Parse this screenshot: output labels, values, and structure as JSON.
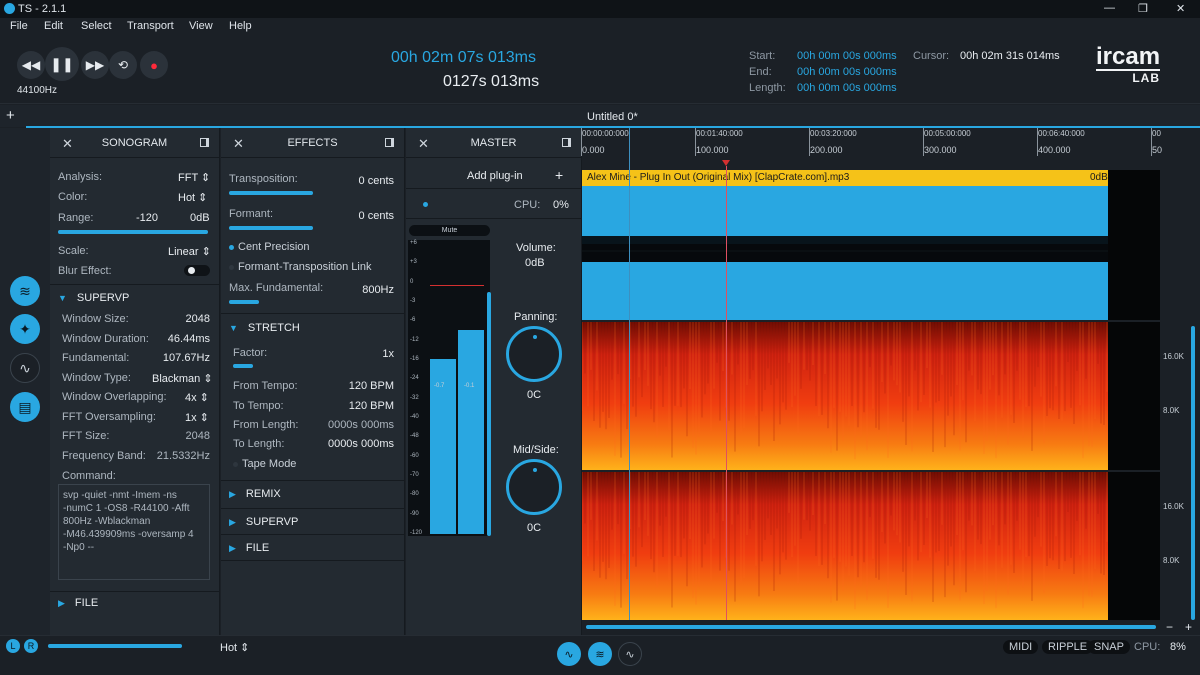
{
  "titlebar": {
    "title": "TS - 2.1.1"
  },
  "menu": [
    "File",
    "Edit",
    "Select",
    "Transport",
    "View",
    "Help"
  ],
  "transport": {
    "samplerate": "44100Hz",
    "time_hms": "00h  02m  07s  013ms",
    "time_s": "0127s  013ms",
    "start_label": "Start:",
    "start_value": "00h  00m  00s  000ms",
    "end_label": "End:",
    "end_value": "00h  00m  00s  000ms",
    "length_label": "Length:",
    "length_value": "00h  00m  00s  000ms",
    "cursor_label": "Cursor:",
    "cursor_value": "00h  02m  31s  014ms",
    "logo_top": "ircam",
    "logo_bottom": "LAB"
  },
  "tab": {
    "title": "Untitled 0*",
    "add": "+"
  },
  "sonogram": {
    "title": "SONOGRAM",
    "analysis_label": "Analysis:",
    "analysis_value": "FFT",
    "color_label": "Color:",
    "color_value": "Hot",
    "range_label": "Range:",
    "range_min": "-120",
    "range_max": "0dB",
    "scale_label": "Scale:",
    "scale_value": "Linear",
    "blur_label": "Blur Effect:",
    "supervp_title": "SUPERVP",
    "window_size_label": "Window Size:",
    "window_size_value": "2048",
    "window_duration_label": "Window Duration:",
    "window_duration_value": "46.44ms",
    "fundamental_label": "Fundamental:",
    "fundamental_value": "107.67Hz",
    "window_type_label": "Window Type:",
    "window_type_value": "Blackman",
    "overlap_label": "Window Overlapping:",
    "overlap_value": "4x",
    "fft_os_label": "FFT Oversampling:",
    "fft_os_value": "1x",
    "fft_size_label": "FFT Size:",
    "fft_size_value": "2048",
    "freq_band_label": "Frequency Band:",
    "freq_band_value": "21.5332Hz",
    "command_label": "Command:",
    "command_value": "svp -quiet -nmt -Imem -ns\n-numC 1 -OS8 -R44100 -Afft\n800Hz -Wblackman\n-M46.439909ms -oversamp 4\n-Np0 --",
    "file_title": "FILE"
  },
  "effects": {
    "title": "EFFECTS",
    "transposition_label": "Transposition:",
    "transposition_value": "0 cents",
    "formant_label": "Formant:",
    "formant_value": "0 cents",
    "cent_precision": "Cent Precision",
    "formant_link": "Formant-Transposition Link",
    "max_fund_label": "Max. Fundamental:",
    "max_fund_value": "800Hz",
    "stretch_title": "STRETCH",
    "factor_label": "Factor:",
    "factor_value": "1x",
    "from_tempo_label": "From Tempo:",
    "from_tempo_value": "120 BPM",
    "to_tempo_label": "To Tempo:",
    "to_tempo_value": "120 BPM",
    "from_length_label": "From Length:",
    "from_length_value": "0000s  000ms",
    "to_length_label": "To Length:",
    "to_length_value": "0000s  000ms",
    "tape_mode": "Tape Mode",
    "remix_title": "REMIX",
    "supervp_title": "SUPERVP",
    "file_title": "FILE"
  },
  "master": {
    "title": "MASTER",
    "add_plugin": "Add plug-in",
    "plus": "+",
    "cpu_label": "CPU:",
    "cpu_value": "0%",
    "mute": "Mute",
    "scale": [
      "+6",
      "+3",
      "0",
      "-3",
      "-6",
      "-12",
      "-16",
      "-24",
      "-32",
      "-40",
      "-48",
      "-60",
      "-70",
      "-80",
      "-90",
      "-120"
    ],
    "peak_l": "-0.7",
    "peak_r": "-0.1",
    "volume_label": "Volume:",
    "volume_value": "0dB",
    "panning_label": "Panning:",
    "panning_value": "0C",
    "midside_label": "Mid/Side:",
    "midside_value": "0C",
    "level": 0.6
  },
  "timeline": {
    "times": [
      "00:00:00:000",
      "00:01:40:000",
      "00:03:20:000",
      "00:05:00:000",
      "00:06:40:000",
      "00"
    ],
    "samples": [
      "0.000",
      "100.000",
      "200.000",
      "300.000",
      "400.000",
      "50"
    ]
  },
  "clip": {
    "name": "Alex Mine - Plug In Out (Original Mix) [ClapCrate.com].mp3",
    "gain": "0dB"
  },
  "freq_axis": [
    "16.0K",
    "8.0K",
    "16.0K",
    "8.0K"
  ],
  "bottom": {
    "color_value": "Hot",
    "midi": "MIDI",
    "ripple": "RIPPLE",
    "snap": "SNAP",
    "cpu_label": "CPU:",
    "cpu_value": "8%",
    "l": "L",
    "r": "R",
    "minus": "−",
    "plus": "+"
  }
}
